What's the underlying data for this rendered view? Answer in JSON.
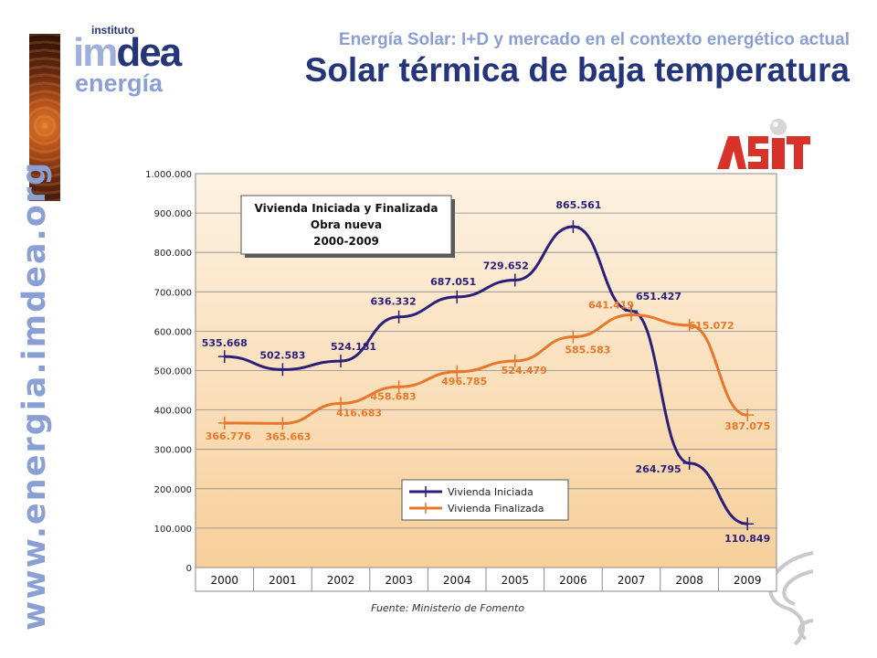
{
  "header": {
    "logo_institute": "instituto",
    "logo_im": "im",
    "logo_dea": "dea",
    "logo_energia": "energía",
    "subtitle": "Energía Solar: I+D y mercado en el contexto energético actual",
    "title": "Solar térmica de baja temperatura",
    "partner_logo": "ASIT"
  },
  "sidebar": {
    "url": "www.energia.imdea.org"
  },
  "colors": {
    "dark_blue": "#25357a",
    "light_blue": "#8aa0d4",
    "series_iniciada": "#2b1f7a",
    "series_finalizada": "#e8772b",
    "asit_red": "#d9322b"
  },
  "chart_data": {
    "type": "line",
    "title_lines": [
      "Vivienda Iniciada y Finalizada",
      "Obra nueva",
      "2000-2009"
    ],
    "categories": [
      "2000",
      "2001",
      "2002",
      "2003",
      "2004",
      "2005",
      "2006",
      "2007",
      "2008",
      "2009"
    ],
    "y_ticks": [
      "0",
      "100.000",
      "200.000",
      "300.000",
      "400.000",
      "500.000",
      "600.000",
      "700.000",
      "800.000",
      "900.000",
      "1.000.000"
    ],
    "ylim": [
      0,
      1000000
    ],
    "legend_position": "bottom-right",
    "source": "Fuente: Ministerio de Fomento",
    "series": [
      {
        "name": "Vivienda Iniciada",
        "values": [
          535668,
          502583,
          524181,
          636332,
          687051,
          729652,
          865561,
          651427,
          264795,
          110849
        ],
        "labels": [
          "535.668",
          "502.583",
          "524.181",
          "636.332",
          "687.051",
          "729.652",
          "865.561",
          "651.427",
          "264.795",
          "110.849"
        ]
      },
      {
        "name": "Vivienda Finalizada",
        "values": [
          366776,
          365663,
          416683,
          458683,
          496785,
          524479,
          585583,
          641419,
          615072,
          387075
        ],
        "labels": [
          "366.776",
          "365.663",
          "416.683",
          "458.683",
          "496.785",
          "524.479",
          "585.583",
          "641.419",
          "615.072",
          "387.075"
        ]
      }
    ]
  }
}
